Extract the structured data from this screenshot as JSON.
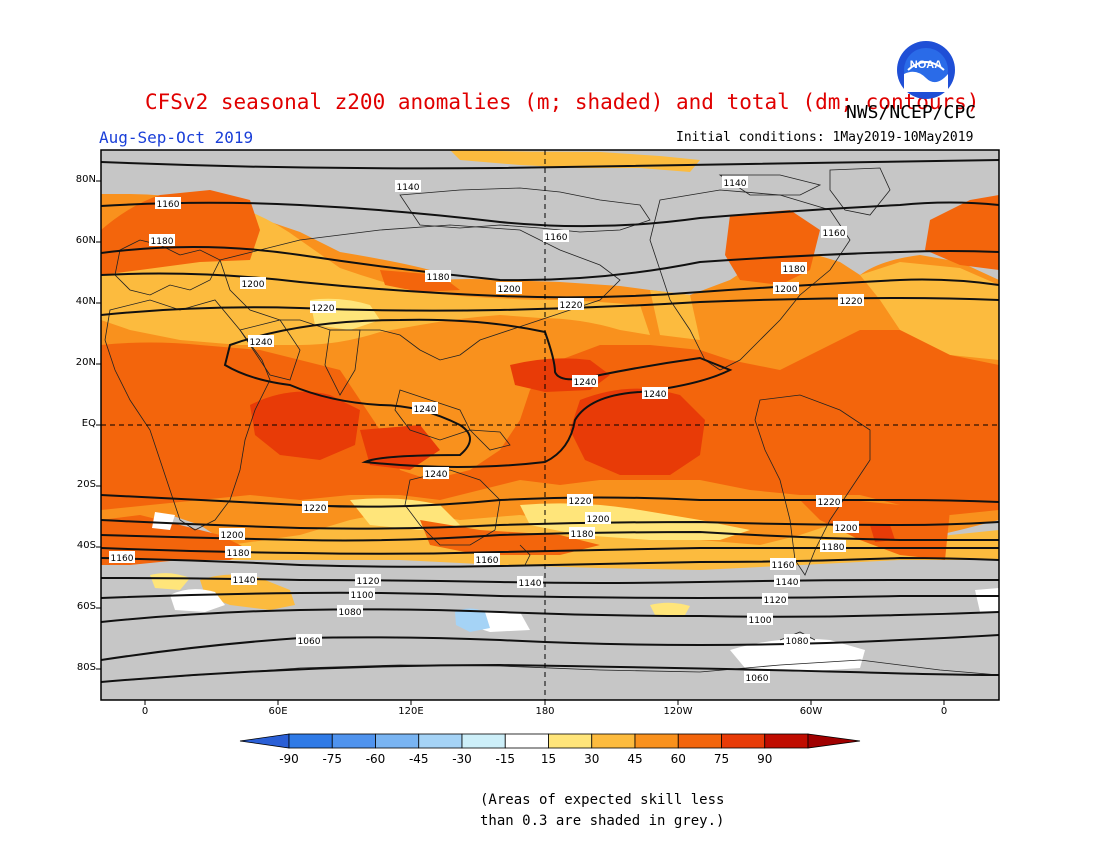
{
  "header": {
    "title": "CFSv2 seasonal z200 anomalies (m; shaded) and total (dm; contours)",
    "organization": "NWS/NCEP/CPC",
    "period": "Aug-Sep-Oct 2019",
    "initial_conditions": "Initial conditions: 1May2019-10May2019",
    "logo_text": "NOAA"
  },
  "map": {
    "latitude_labels": [
      "80N",
      "60N",
      "40N",
      "20N",
      "EQ",
      "20S",
      "40S",
      "60S",
      "80S"
    ],
    "longitude_labels": [
      "0",
      "60E",
      "120E",
      "180",
      "120W",
      "60W",
      "0"
    ],
    "contour_labels": [
      "1060",
      "1080",
      "1100",
      "1120",
      "1140",
      "1160",
      "1180",
      "1200",
      "1220",
      "1240"
    ]
  },
  "colorbar": {
    "ticks": [
      "-90",
      "-75",
      "-60",
      "-45",
      "-30",
      "-15",
      "15",
      "30",
      "45",
      "60",
      "75",
      "90"
    ],
    "colors": [
      "#2a5fd6",
      "#2f7ae6",
      "#4f93ee",
      "#79b4f2",
      "#a5d3f6",
      "#cdeff9",
      "#ffffff",
      "#ffe57a",
      "#fcbb3e",
      "#f9911d",
      "#f3650c",
      "#e83b07",
      "#c00c00",
      "#a00000"
    ]
  },
  "note": {
    "line1": "(Areas of expected skill less",
    "line2": "than 0.3 are shaded in grey.)"
  }
}
